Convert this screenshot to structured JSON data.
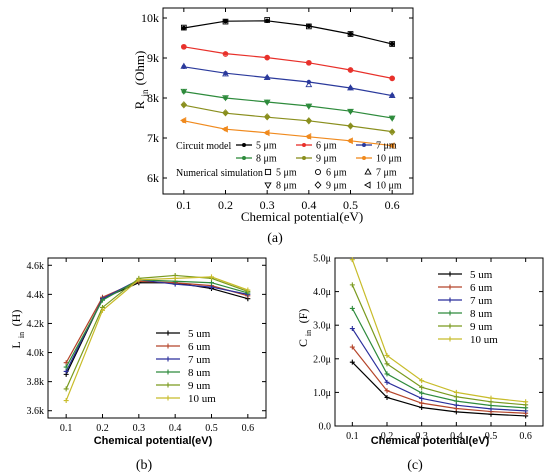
{
  "chart_data": [
    {
      "id": "a",
      "type": "line",
      "panel_label": "(a)",
      "xlabel": "Chemical potential(eV)",
      "ylabel_main": "R",
      "ylabel_sub": "in",
      "ylabel_unit": " (Ohm)",
      "xlim": [
        0.05,
        0.65
      ],
      "ylim": [
        5600,
        10250
      ],
      "x_ticks": [
        0.1,
        0.2,
        0.3,
        0.4,
        0.5,
        0.6
      ],
      "x_tick_labels": [
        "0.1",
        "0.2",
        "0.3",
        "0.4",
        "0.5",
        "0.6"
      ],
      "y_ticks": [
        6000,
        7000,
        8000,
        9000,
        10000
      ],
      "y_tick_labels": [
        "6k",
        "7k",
        "8k",
        "9k",
        "10k"
      ],
      "x": [
        0.1,
        0.2,
        0.3,
        0.4,
        0.5,
        0.6
      ],
      "legend_circuit_title": "Circuit model",
      "legend_numerical_title": "Numerical simulation",
      "series": [
        {
          "name": "5 μm",
          "color": "#000000",
          "marker": "square",
          "values": [
            9750,
            9920,
            9930,
            9800,
            9600,
            9350
          ],
          "sim": [
            9760,
            9910,
            9950,
            9790,
            9600,
            9350
          ]
        },
        {
          "name": "6 μm",
          "color": "#e8302a",
          "marker": "circle",
          "values": [
            9280,
            9110,
            9010,
            8880,
            8700,
            8490
          ],
          "sim": [
            9280,
            9100,
            9010,
            8880,
            8700,
            8490
          ]
        },
        {
          "name": "7 μm",
          "color": "#2b3a9c",
          "marker": "triangle-up",
          "values": [
            8780,
            8620,
            8510,
            8400,
            8250,
            8060
          ],
          "sim": [
            8790,
            8600,
            8510,
            8330,
            8250,
            8060
          ]
        },
        {
          "name": "8 μm",
          "color": "#2e8b3c",
          "marker": "triangle-down",
          "values": [
            8160,
            8000,
            7900,
            7800,
            7670,
            7500
          ],
          "sim": [
            8170,
            8010,
            7900,
            7800,
            7670,
            7500
          ]
        },
        {
          "name": "9 μm",
          "color": "#8a8f1e",
          "marker": "diamond",
          "values": [
            7820,
            7620,
            7520,
            7430,
            7300,
            7160
          ],
          "sim": [
            7830,
            7630,
            7530,
            7430,
            7300,
            7150
          ]
        },
        {
          "name": "10 μm",
          "color": "#f08a1e",
          "marker": "triangle-left",
          "values": [
            7430,
            7220,
            7130,
            7030,
            6930,
            6810
          ],
          "sim": [
            7440,
            7220,
            7130,
            7040,
            6930,
            6810
          ]
        }
      ]
    },
    {
      "id": "b",
      "type": "line",
      "panel_label": "(b)",
      "xlabel": "Chemical potential(eV)",
      "ylabel_main": "L",
      "ylabel_sub": "in",
      "ylabel_unit": " (H)",
      "xlim": [
        0.05,
        0.65
      ],
      "ylim": [
        3550,
        4650
      ],
      "x_ticks": [
        0.1,
        0.2,
        0.3,
        0.4,
        0.5,
        0.6
      ],
      "x_tick_labels": [
        "0.1",
        "0.2",
        "0.3",
        "0.4",
        "0.5",
        "0.6"
      ],
      "y_ticks": [
        3600,
        3800,
        4000,
        4200,
        4400,
        4600
      ],
      "y_tick_labels": [
        "3.6k",
        "3.8k",
        "4.0k",
        "4.2k",
        "4.4k",
        "4.6k"
      ],
      "x": [
        0.1,
        0.2,
        0.3,
        0.4,
        0.5,
        0.6
      ],
      "series": [
        {
          "name": "5 um",
          "color": "#000000",
          "values": [
            3850,
            4370,
            4480,
            4480,
            4440,
            4370
          ]
        },
        {
          "name": "6 um",
          "color": "#b5452a",
          "values": [
            3930,
            4380,
            4490,
            4480,
            4460,
            4390
          ]
        },
        {
          "name": "7 um",
          "color": "#2b2f9c",
          "values": [
            3870,
            4370,
            4500,
            4470,
            4450,
            4400
          ]
        },
        {
          "name": "8 um",
          "color": "#2e8b3c",
          "values": [
            3900,
            4360,
            4500,
            4490,
            4480,
            4410
          ]
        },
        {
          "name": "9 um",
          "color": "#7a9a1e",
          "values": [
            3750,
            4310,
            4510,
            4530,
            4510,
            4420
          ]
        },
        {
          "name": "10 um",
          "color": "#c8bc2a",
          "values": [
            3670,
            4290,
            4500,
            4510,
            4520,
            4430
          ]
        }
      ]
    },
    {
      "id": "c",
      "type": "line",
      "panel_label": "(c)",
      "xlabel": "Chemical potential(eV)",
      "ylabel_main": "C",
      "ylabel_sub": "in",
      "ylabel_unit": " (F)",
      "xlim": [
        0.05,
        0.65
      ],
      "ylim": [
        0,
        5.0
      ],
      "x_ticks": [
        0.1,
        0.2,
        0.3,
        0.4,
        0.5,
        0.6
      ],
      "x_tick_labels": [
        "0.1",
        "0.2",
        "0.3",
        "0.4",
        "0.5",
        "0.6"
      ],
      "y_ticks": [
        0,
        1,
        2,
        3,
        4,
        5
      ],
      "y_tick_labels": [
        "0.0",
        "1.0μ",
        "2.0μ",
        "3.0μ",
        "4.0μ",
        "5.0μ"
      ],
      "x": [
        0.1,
        0.2,
        0.3,
        0.4,
        0.5,
        0.6
      ],
      "series": [
        {
          "name": "5 um",
          "color": "#000000",
          "values": [
            1.9,
            0.85,
            0.55,
            0.42,
            0.35,
            0.3
          ]
        },
        {
          "name": "6 um",
          "color": "#b5452a",
          "values": [
            2.35,
            1.05,
            0.68,
            0.52,
            0.43,
            0.38
          ]
        },
        {
          "name": "7 um",
          "color": "#2b2f9c",
          "values": [
            2.9,
            1.3,
            0.82,
            0.62,
            0.51,
            0.45
          ]
        },
        {
          "name": "8 um",
          "color": "#2e8b3c",
          "values": [
            3.5,
            1.55,
            0.98,
            0.74,
            0.61,
            0.54
          ]
        },
        {
          "name": "9 um",
          "color": "#7a9a1e",
          "values": [
            4.2,
            1.85,
            1.15,
            0.87,
            0.72,
            0.63
          ]
        },
        {
          "name": "10 um",
          "color": "#c8bc2a",
          "values": [
            4.95,
            2.1,
            1.35,
            1.0,
            0.83,
            0.72
          ]
        }
      ]
    }
  ]
}
